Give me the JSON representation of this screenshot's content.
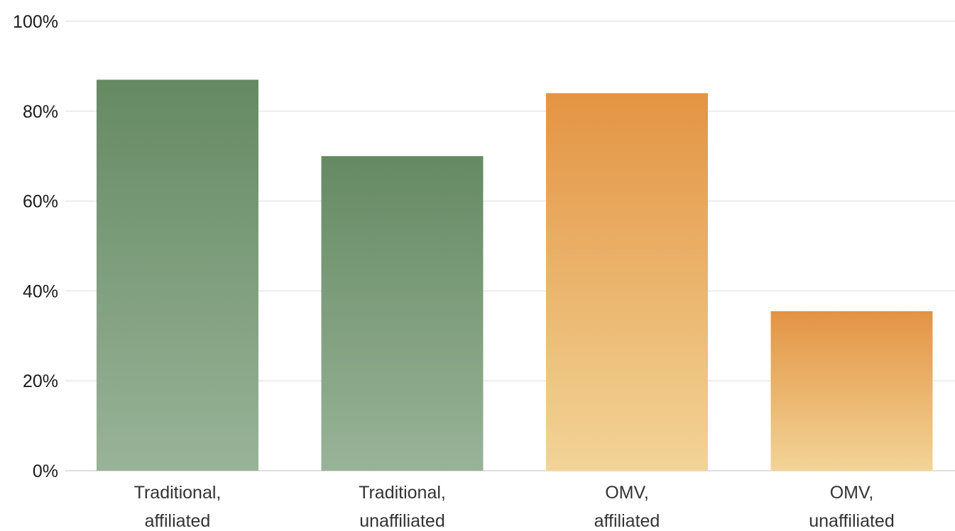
{
  "chart_data": {
    "type": "bar",
    "title": "",
    "xlabel": "",
    "ylabel": "",
    "categories": [
      [
        "Traditional,",
        "affiliated"
      ],
      [
        "Traditional,",
        "unaffiliated"
      ],
      [
        "OMV,",
        "affiliated"
      ],
      [
        "OMV,",
        "unaffiliated"
      ]
    ],
    "values": [
      87,
      70,
      84,
      35.5
    ],
    "ylim": [
      0,
      100
    ],
    "yticks": [
      0,
      20,
      40,
      60,
      80,
      100
    ],
    "ytick_labels": [
      "0%",
      "20%",
      "40%",
      "60%",
      "80%",
      "100%"
    ],
    "grid": true,
    "legend": "none",
    "bar_colors": [
      {
        "top": "#658a63",
        "bottom": "#99b398"
      },
      {
        "top": "#658a63",
        "bottom": "#99b398"
      },
      {
        "top": "#e39443",
        "bottom": "#f2d497"
      },
      {
        "top": "#e39443",
        "bottom": "#f2d497"
      }
    ]
  }
}
